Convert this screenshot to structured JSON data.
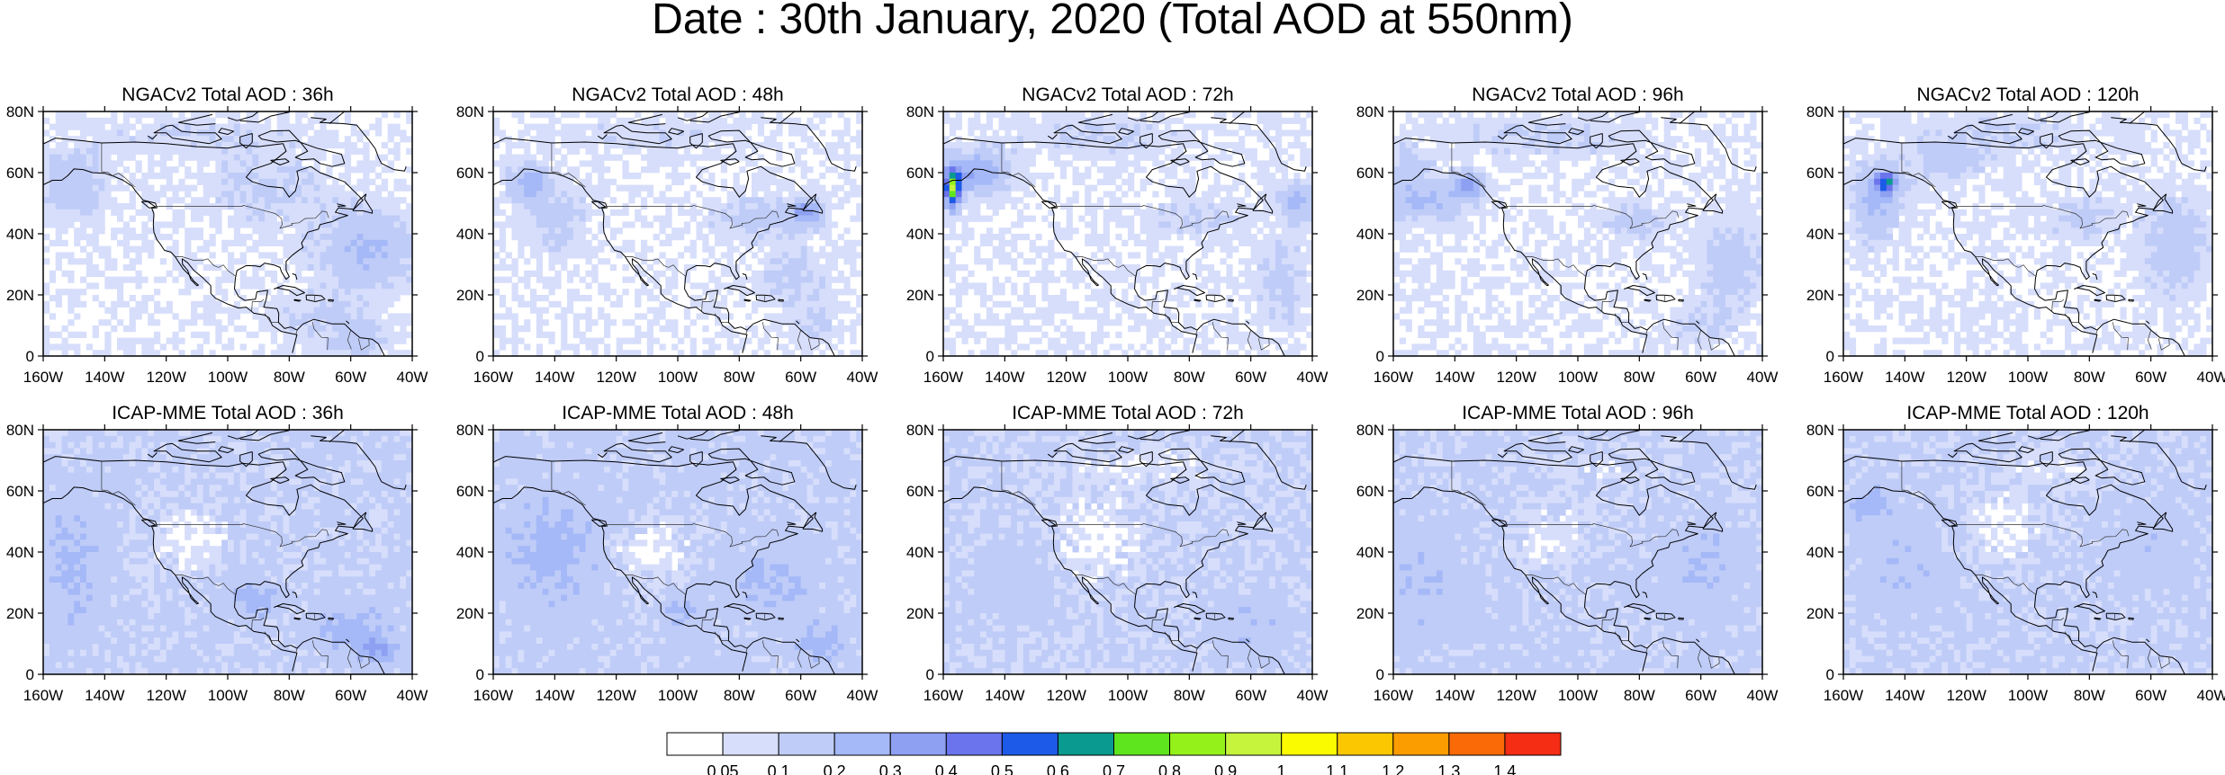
{
  "title": "Date : 30th January, 2020 (Total AOD at 550nm)",
  "chart_data": {
    "type": "heatmap",
    "title": "Date : 30th January, 2020 (Total AOD at 550nm)",
    "variable": "Total AOD at 550nm",
    "lon_ticks": [
      "160W",
      "140W",
      "120W",
      "100W",
      "80W",
      "60W",
      "40W"
    ],
    "lat_ticks": [
      "0",
      "20N",
      "40N",
      "60N",
      "80N"
    ],
    "lon_range": [
      -160,
      -40
    ],
    "lat_range": [
      0,
      80
    ],
    "panels": [
      {
        "row": "NGACv2",
        "lead": "36h",
        "title": "NGACv2 Total AOD : 36h",
        "max_aod_approx": 0.4
      },
      {
        "row": "NGACv2",
        "lead": "48h",
        "title": "NGACv2 Total AOD : 48h",
        "max_aod_approx": 0.5
      },
      {
        "row": "NGACv2",
        "lead": "72h",
        "title": "NGACv2 Total AOD : 72h",
        "max_aod_approx": 0.8
      },
      {
        "row": "NGACv2",
        "lead": "96h",
        "title": "NGACv2 Total AOD : 96h",
        "max_aod_approx": 0.5
      },
      {
        "row": "NGACv2",
        "lead": "120h",
        "title": "NGACv2 Total AOD : 120h",
        "max_aod_approx": 0.6
      },
      {
        "row": "ICAP-MME",
        "lead": "36h",
        "title": "ICAP-MME Total AOD : 36h",
        "max_aod_approx": 0.4
      },
      {
        "row": "ICAP-MME",
        "lead": "48h",
        "title": "ICAP-MME Total AOD : 48h",
        "max_aod_approx": 0.4
      },
      {
        "row": "ICAP-MME",
        "lead": "72h",
        "title": "ICAP-MME Total AOD : 72h",
        "max_aod_approx": 0.3
      },
      {
        "row": "ICAP-MME",
        "lead": "96h",
        "title": "ICAP-MME Total AOD : 96h",
        "max_aod_approx": 0.3
      },
      {
        "row": "ICAP-MME",
        "lead": "120h",
        "title": "ICAP-MME Total AOD : 120h",
        "max_aod_approx": 0.3
      }
    ],
    "colorbar": {
      "levels": [
        "0.05",
        "0.1",
        "0.2",
        "0.3",
        "0.4",
        "0.5",
        "0.6",
        "0.7",
        "0.8",
        "0.9",
        "1",
        "1.1",
        "1.2",
        "1.3",
        "1.4"
      ],
      "colors": [
        "#ffffff",
        "#d7defb",
        "#bfccf8",
        "#a5b8f7",
        "#8ea0f2",
        "#6b74ec",
        "#1d5ae8",
        "#0b9a8f",
        "#5ee51d",
        "#94f21a",
        "#c6f43c",
        "#fbfb00",
        "#fbc700",
        "#fb9d00",
        "#fa6b08",
        "#f42d14"
      ]
    }
  }
}
